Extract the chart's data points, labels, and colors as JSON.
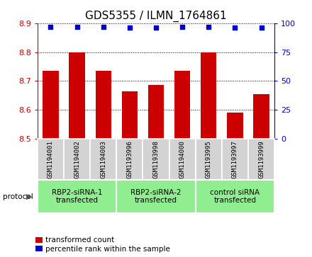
{
  "title": "GDS5355 / ILMN_1764861",
  "samples": [
    "GSM1194001",
    "GSM1194002",
    "GSM1194003",
    "GSM1193996",
    "GSM1193998",
    "GSM1194000",
    "GSM1193995",
    "GSM1193997",
    "GSM1193999"
  ],
  "bar_values": [
    8.735,
    8.8,
    8.735,
    8.665,
    8.685,
    8.735,
    8.8,
    8.59,
    8.655
  ],
  "percentile_values": [
    97,
    97,
    97,
    96,
    96,
    97,
    97,
    96,
    96
  ],
  "ylim_left": [
    8.5,
    8.9
  ],
  "ylim_right": [
    0,
    100
  ],
  "yticks_left": [
    8.5,
    8.6,
    8.7,
    8.8,
    8.9
  ],
  "yticks_right": [
    0,
    25,
    50,
    75,
    100
  ],
  "bar_color": "#cc0000",
  "dot_color": "#0000cc",
  "bar_width": 0.6,
  "groups": [
    {
      "label": "RBP2-siRNA-1\ntransfected",
      "start": 0,
      "end": 3,
      "color": "#90ee90"
    },
    {
      "label": "RBP2-siRNA-2\ntransfected",
      "start": 3,
      "end": 6,
      "color": "#90ee90"
    },
    {
      "label": "control siRNA\ntransfected",
      "start": 6,
      "end": 9,
      "color": "#90ee90"
    }
  ],
  "protocol_label": "protocol",
  "legend_bar_label": "transformed count",
  "legend_dot_label": "percentile rank within the sample",
  "tick_color_left": "#cc0000",
  "tick_color_right": "#0000cc",
  "grid_color": "#000000",
  "sample_box_color": "#d3d3d3",
  "title_fontsize": 11,
  "axis_fontsize": 8,
  "label_fontsize": 7.5,
  "sample_fontsize": 6.5,
  "group_fontsize": 7.5
}
